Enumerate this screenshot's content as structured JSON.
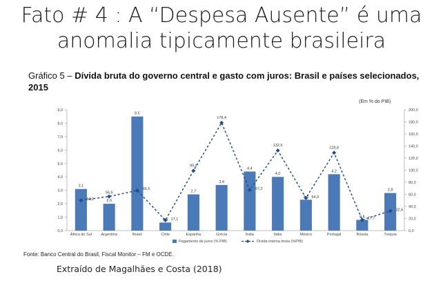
{
  "slide": {
    "title_line1": "Fato # 4 : A “Despesa Ausente” é uma",
    "title_line2": "anomalia tipicamente brasileira"
  },
  "caption": {
    "prefix": "Gráfico 5 – ",
    "bold": "Dívida bruta do governo central e gasto com juros: Brasil e países selecionados, 2015"
  },
  "unit_note": "(Em % do PIB)",
  "source": "Fonte: Banco Central do Brasil, Fiscal Monitor – FM e OCDE.",
  "credit": "Extraído de Magalhães e Costa (2018)",
  "chart_data": {
    "type": "bar",
    "categories": [
      "África do Sul",
      "Argentina",
      "Brasil",
      "Chile",
      "Espanha",
      "Grécia",
      "Índia",
      "Itália",
      "México",
      "Portugal",
      "Rússia",
      "Turquia"
    ],
    "series": [
      {
        "name": "Pagamento de juros (% PIB)",
        "type": "bar",
        "axis": "left",
        "color": "#4a7ab7",
        "values": [
          3.1,
          2.0,
          8.5,
          0.6,
          2.7,
          3.4,
          4.4,
          4.0,
          2.3,
          4.2,
          0.8,
          2.8
        ],
        "labels": [
          "3,1",
          "2,0",
          "8,5",
          "0,6",
          "2,7",
          "3,4",
          "4,4",
          "4,0",
          "2,3",
          "4,2",
          "0,8",
          "2,8"
        ]
      },
      {
        "name": "Dívida interna bruta (%PIB)",
        "type": "line",
        "axis": "right",
        "color": "#1f4e8c",
        "values": [
          50.1,
          56.5,
          66.5,
          17.1,
          99.0,
          178.4,
          67.2,
          132.6,
          54.0,
          128.8,
          17.7,
          32.6
        ],
        "labels": [
          "50,1",
          "56,5",
          "66,5",
          "17,1",
          "99,0",
          "178,4",
          "67,2",
          "132,6",
          "54,0",
          "128,8",
          "17,7",
          "32,6"
        ]
      }
    ],
    "left_axis": {
      "ylim": [
        0,
        9
      ],
      "ticks": [
        "0,0",
        "1,0",
        "2,0",
        "3,0",
        "4,0",
        "5,0",
        "6,0",
        "7,0",
        "8,0",
        "9,0"
      ]
    },
    "right_axis": {
      "ylim": [
        0,
        200
      ],
      "ticks": [
        "0,0",
        "20,0",
        "40,0",
        "60,0",
        "80,0",
        "100,0",
        "120,0",
        "140,0",
        "160,0",
        "180,0",
        "200,0"
      ]
    },
    "grid": false,
    "legend_position": "bottom"
  }
}
